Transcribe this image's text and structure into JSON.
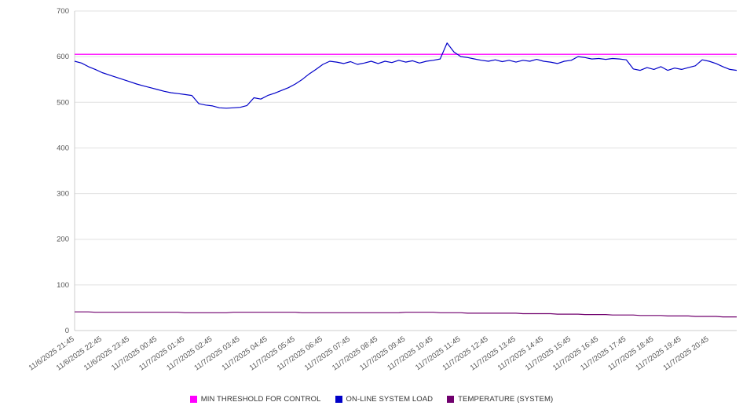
{
  "chart_data": {
    "type": "line",
    "title": "",
    "xlabel": "",
    "ylabel": "",
    "ylim": [
      0,
      700
    ],
    "y_ticks": [
      0,
      100,
      200,
      300,
      400,
      500,
      600,
      700
    ],
    "grid": true,
    "legend_position": "bottom",
    "colors": {
      "grid": "#e0e0e0",
      "axis": "#cccccc",
      "tick_text": "#555555"
    },
    "x_labels": [
      "11/6/2025 21:45",
      "11/6/2025 22:45",
      "11/6/2025 23:45",
      "11/7/2025 00:45",
      "11/7/2025 01:45",
      "11/7/2025 02:45",
      "11/7/2025 03:45",
      "11/7/2025 04:45",
      "11/7/2025 05:45",
      "11/7/2025 06:45",
      "11/7/2025 07:45",
      "11/7/2025 08:45",
      "11/7/2025 09:45",
      "11/7/2025 10:45",
      "11/7/2025 11:45",
      "11/7/2025 12:45",
      "11/7/2025 13:45",
      "11/7/2025 14:45",
      "11/7/2025 15:45",
      "11/7/2025 16:45",
      "11/7/2025 17:45",
      "11/7/2025 18:45",
      "11/7/2025 19:45",
      "11/7/2025 20:45"
    ],
    "points_per_label": 4,
    "series": [
      {
        "name": "MIN THRESHOLD FOR CONTROL",
        "color": "#ff00ff",
        "type": "hline",
        "value": 605
      },
      {
        "name": "ON-LINE SYSTEM LOAD",
        "color": "#0000c8",
        "type": "line",
        "values": [
          590,
          586,
          578,
          572,
          565,
          560,
          555,
          550,
          545,
          540,
          536,
          532,
          528,
          524,
          521,
          519,
          517,
          515,
          497,
          494,
          492,
          488,
          487,
          488,
          489,
          493,
          510,
          507,
          515,
          520,
          526,
          532,
          540,
          550,
          562,
          572,
          583,
          590,
          588,
          585,
          589,
          583,
          586,
          590,
          585,
          590,
          587,
          592,
          588,
          591,
          586,
          590,
          592,
          595,
          630,
          610,
          600,
          598,
          595,
          592,
          590,
          593,
          589,
          592,
          588,
          592,
          590,
          594,
          590,
          588,
          585,
          590,
          592,
          600,
          598,
          595,
          596,
          594,
          596,
          595,
          593,
          573,
          570,
          576,
          572,
          578,
          570,
          575,
          572,
          576,
          580,
          593,
          590,
          585,
          578,
          572,
          570
        ]
      },
      {
        "name": "TEMPERATURE (SYSTEM)",
        "color": "#70006e",
        "type": "line",
        "values": [
          41,
          41,
          41,
          40,
          40,
          40,
          40,
          40,
          40,
          40,
          40,
          40,
          40,
          40,
          40,
          40,
          39,
          39,
          39,
          39,
          39,
          39,
          39,
          40,
          40,
          40,
          40,
          40,
          40,
          40,
          40,
          40,
          40,
          39,
          39,
          39,
          39,
          39,
          39,
          39,
          39,
          39,
          39,
          39,
          39,
          39,
          39,
          39,
          40,
          40,
          40,
          40,
          40,
          39,
          39,
          39,
          39,
          38,
          38,
          38,
          38,
          38,
          38,
          38,
          38,
          37,
          37,
          37,
          37,
          37,
          36,
          36,
          36,
          36,
          35,
          35,
          35,
          35,
          34,
          34,
          34,
          34,
          33,
          33,
          33,
          33,
          32,
          32,
          32,
          32,
          31,
          31,
          31,
          31,
          30,
          30,
          30
        ]
      }
    ]
  }
}
